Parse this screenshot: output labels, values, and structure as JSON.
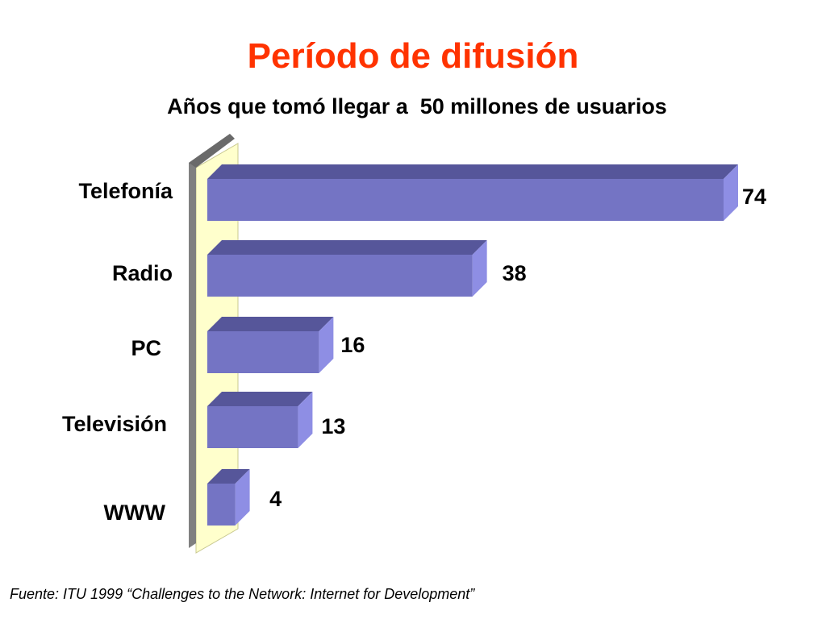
{
  "slide": {
    "title": "Período de difusión",
    "subtitle": "Años que tomó llegar a  50 millones de usuarios",
    "source": "Fuente: ITU 1999 “Challenges to the Network: Internet for Development”"
  },
  "colors": {
    "title": "#ff3300",
    "bar_front": "#7474c4",
    "bar_top": "#56569a",
    "bar_side": "#8e8ee4",
    "wall_back": "#ffffcc",
    "wall_left": "#808080"
  },
  "chart_data": {
    "type": "bar",
    "orientation": "horizontal",
    "style": "3d",
    "title": "Período de difusión",
    "subtitle": "Años que tomó llegar a  50 millones de usuarios",
    "categories": [
      "Telefonía",
      "Radio",
      "PC",
      "Televisión",
      "WWW"
    ],
    "values": [
      74,
      38,
      16,
      13,
      4
    ],
    "data_labels": [
      "74",
      "38",
      "16",
      "13",
      "4"
    ],
    "xlim": [
      0,
      74
    ],
    "grid": false,
    "legend": "none"
  }
}
